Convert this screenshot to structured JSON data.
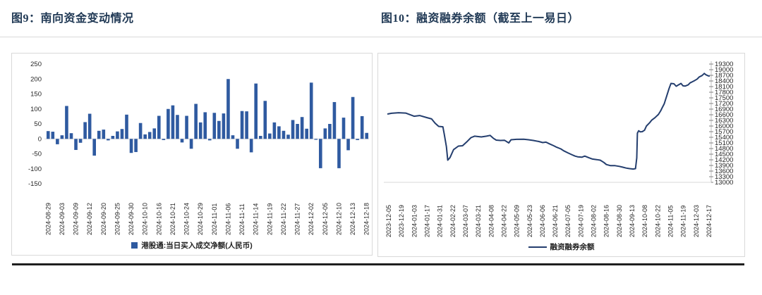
{
  "page": {
    "figure9_title": "图9：南向资金变动情况",
    "figure10_title": "图10：融资融券余额（截至上一易日）"
  },
  "colors": {
    "bar": "#2f5aa0",
    "line": "#243e6e",
    "title_text": "#1f3854",
    "axis_text": "#262626",
    "panel_border": "#d9d9d9",
    "zero_line": "#d9d9d9",
    "bottom_rule": "#1f1f1f"
  },
  "chart_data": [
    {
      "type": "bar",
      "title": "图9：南向资金变动情况",
      "legend": "港股通:当日买入成交净额(人民币)",
      "ylim": [
        -150,
        250
      ],
      "yticks": [
        250,
        200,
        150,
        100,
        50,
        0,
        -50,
        -100,
        -150
      ],
      "grid": false,
      "legend_position": "bottom",
      "x_label_interval": 3,
      "x_labels": [
        "2024-08-29",
        "2024-09-03",
        "2024-09-09",
        "2024-09-12",
        "2024-09-20",
        "2024-09-25",
        "2024-09-30",
        "2024-10-10",
        "2024-10-16",
        "2024-10-21",
        "2024-10-24",
        "2024-10-29",
        "2024-11-01",
        "2024-11-06",
        "2024-11-11",
        "2024-11-14",
        "2024-11-19",
        "2024-11-22",
        "2024-11-27",
        "2024-12-02",
        "2024-12-05",
        "2024-12-10",
        "2024-12-13",
        "2024-12-18"
      ],
      "values": [
        26,
        24,
        -18,
        12,
        110,
        19,
        -37,
        -13,
        56,
        84,
        -56,
        27,
        31,
        -5,
        10,
        25,
        33,
        81,
        -47,
        -44,
        53,
        15,
        23,
        35,
        77,
        -4,
        100,
        112,
        80,
        -12,
        77,
        -33,
        117,
        55,
        89,
        -5,
        87,
        60,
        85,
        200,
        12,
        -33,
        93,
        92,
        -45,
        185,
        10,
        127,
        18,
        55,
        42,
        27,
        14,
        63,
        50,
        73,
        34,
        188,
        -3,
        -98,
        35,
        50,
        123,
        -98,
        71,
        -38,
        140,
        -4,
        76,
        20
      ]
    },
    {
      "type": "line",
      "title": "图10：融资融券余额（截至上一易日）",
      "legend": "融资融券余额",
      "ylim": [
        13000,
        19300
      ],
      "yticks": [
        19300,
        19000,
        18700,
        18400,
        18100,
        17800,
        17500,
        17200,
        16900,
        16600,
        16300,
        16000,
        15700,
        15400,
        15100,
        14800,
        14500,
        14200,
        13900,
        13600,
        13300,
        13000
      ],
      "grid": false,
      "legend_position": "bottom",
      "y_axis_side": "right",
      "x_labels": [
        "2023-12-05",
        "2023-12-19",
        "2024-01-03",
        "2024-01-17",
        "2024-01-31",
        "2024-02-22",
        "2024-03-07",
        "2024-03-21",
        "2024-04-08",
        "2024-04-22",
        "2024-05-09",
        "2024-05-23",
        "2024-06-06",
        "2024-06-21",
        "2024-07-05",
        "2024-07-19",
        "2024-08-02",
        "2024-08-16",
        "2024-08-30",
        "2024-09-13",
        "2024-10-08",
        "2024-10-22",
        "2024-11-05",
        "2024-11-19",
        "2024-12-03",
        "2024-12-17"
      ],
      "points": [
        [
          0.004,
          16640
        ],
        [
          0.015,
          16680
        ],
        [
          0.037,
          16710
        ],
        [
          0.059,
          16690
        ],
        [
          0.085,
          16520
        ],
        [
          0.102,
          16560
        ],
        [
          0.124,
          16450
        ],
        [
          0.139,
          16380
        ],
        [
          0.15,
          16150
        ],
        [
          0.161,
          15980
        ],
        [
          0.174,
          15960
        ],
        [
          0.178,
          15600
        ],
        [
          0.185,
          14900
        ],
        [
          0.189,
          14180
        ],
        [
          0.196,
          14320
        ],
        [
          0.207,
          14740
        ],
        [
          0.222,
          14930
        ],
        [
          0.235,
          14950
        ],
        [
          0.25,
          15190
        ],
        [
          0.261,
          15380
        ],
        [
          0.272,
          15460
        ],
        [
          0.293,
          15420
        ],
        [
          0.309,
          15460
        ],
        [
          0.32,
          15500
        ],
        [
          0.33,
          15350
        ],
        [
          0.339,
          15250
        ],
        [
          0.352,
          15230
        ],
        [
          0.365,
          15240
        ],
        [
          0.378,
          15100
        ],
        [
          0.385,
          15270
        ],
        [
          0.402,
          15290
        ],
        [
          0.424,
          15300
        ],
        [
          0.439,
          15270
        ],
        [
          0.454,
          15230
        ],
        [
          0.47,
          15180
        ],
        [
          0.483,
          15120
        ],
        [
          0.493,
          15140
        ],
        [
          0.504,
          15050
        ],
        [
          0.517,
          14950
        ],
        [
          0.526,
          14870
        ],
        [
          0.539,
          14780
        ],
        [
          0.548,
          14680
        ],
        [
          0.561,
          14570
        ],
        [
          0.572,
          14480
        ],
        [
          0.583,
          14400
        ],
        [
          0.591,
          14360
        ],
        [
          0.604,
          14340
        ],
        [
          0.613,
          14400
        ],
        [
          0.626,
          14310
        ],
        [
          0.637,
          14240
        ],
        [
          0.65,
          14210
        ],
        [
          0.661,
          14180
        ],
        [
          0.672,
          14060
        ],
        [
          0.68,
          13950
        ],
        [
          0.693,
          13890
        ],
        [
          0.707,
          13890
        ],
        [
          0.72,
          13850
        ],
        [
          0.73,
          13810
        ],
        [
          0.741,
          13760
        ],
        [
          0.752,
          13730
        ],
        [
          0.763,
          13710
        ],
        [
          0.77,
          13730
        ],
        [
          0.774,
          14300
        ],
        [
          0.776,
          15620
        ],
        [
          0.78,
          15750
        ],
        [
          0.785,
          15690
        ],
        [
          0.791,
          15700
        ],
        [
          0.798,
          15780
        ],
        [
          0.804,
          16000
        ],
        [
          0.813,
          16160
        ],
        [
          0.82,
          16310
        ],
        [
          0.83,
          16440
        ],
        [
          0.841,
          16620
        ],
        [
          0.848,
          16810
        ],
        [
          0.852,
          16950
        ],
        [
          0.859,
          17180
        ],
        [
          0.867,
          17620
        ],
        [
          0.874,
          18000
        ],
        [
          0.88,
          18270
        ],
        [
          0.889,
          18250
        ],
        [
          0.896,
          18120
        ],
        [
          0.902,
          18180
        ],
        [
          0.911,
          18270
        ],
        [
          0.917,
          18140
        ],
        [
          0.924,
          18130
        ],
        [
          0.933,
          18190
        ],
        [
          0.939,
          18300
        ],
        [
          0.946,
          18360
        ],
        [
          0.954,
          18430
        ],
        [
          0.961,
          18500
        ],
        [
          0.967,
          18610
        ],
        [
          0.976,
          18690
        ],
        [
          0.983,
          18800
        ],
        [
          0.987,
          18740
        ],
        [
          0.993,
          18690
        ],
        [
          0.998,
          18660
        ]
      ]
    }
  ]
}
